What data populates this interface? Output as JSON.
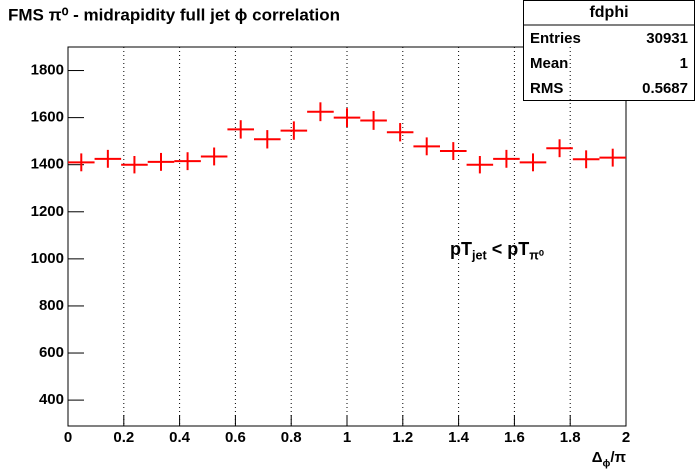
{
  "chart_data": {
    "type": "histogram",
    "title": "FMS π⁰ - midrapidity full jet ϕ correlation",
    "x_label": [
      {
        "text": "Δ"
      },
      {
        "text": "ϕ",
        "sub": true
      },
      {
        "text": "/π"
      }
    ],
    "annotation": [
      {
        "text": "pT"
      },
      {
        "text": "jet",
        "sub": true
      },
      {
        "text": " < pT"
      },
      {
        "text": "π⁰",
        "sub": true
      }
    ],
    "bins": [
      0,
      0.0952,
      0.1905,
      0.2857,
      0.381,
      0.4762,
      0.5714,
      0.6667,
      0.7619,
      0.8571,
      0.9524,
      1.0476,
      1.1429,
      1.2381,
      1.3333,
      1.4286,
      1.5238,
      1.619,
      1.7143,
      1.8095,
      1.9048,
      2
    ],
    "values": [
      1410,
      1425,
      1400,
      1412,
      1415,
      1435,
      1550,
      1508,
      1545,
      1625,
      1600,
      1588,
      1538,
      1478,
      1458,
      1400,
      1425,
      1410,
      1470,
      1423,
      1430
    ],
    "errors": [
      38,
      38,
      37,
      38,
      38,
      38,
      39,
      39,
      39,
      40,
      40,
      40,
      39,
      38,
      38,
      37,
      38,
      38,
      38,
      38,
      38
    ],
    "color": "#ff0000",
    "xlim": [
      0,
      2
    ],
    "xticks": [
      0,
      0.2,
      0.4,
      0.6,
      0.8,
      1,
      1.2,
      1.4,
      1.6,
      1.8,
      2
    ],
    "ylim": [
      290,
      1900
    ],
    "yticks": [
      400,
      600,
      800,
      1000,
      1200,
      1400,
      1600,
      1800
    ],
    "x_grid": true,
    "stats": {
      "title": "fdphi",
      "rows": [
        {
          "label": "Entries",
          "value": 30931
        },
        {
          "label": "Mean",
          "value": 1
        },
        {
          "label": "RMS",
          "value": 0.5687
        }
      ]
    }
  }
}
